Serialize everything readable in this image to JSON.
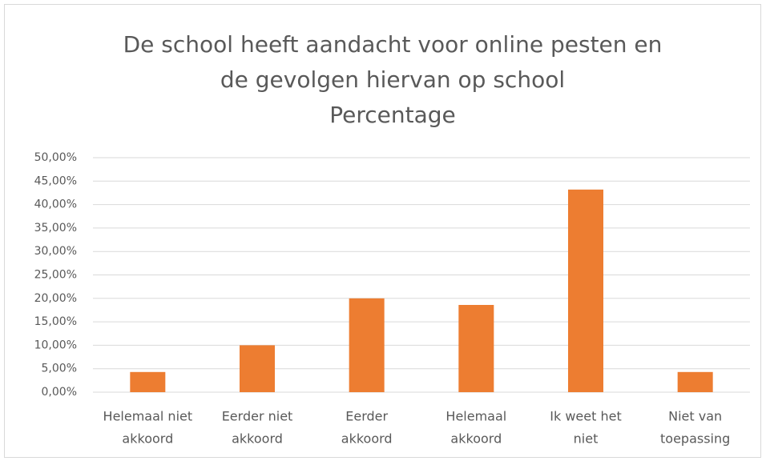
{
  "chart_data": {
    "type": "bar",
    "title": [
      "De school heeft aandacht voor online pesten en",
      "de gevolgen hiervan op school"
    ],
    "subtitle": "Percentage",
    "categories": [
      [
        "Helemaal niet",
        "akkoord"
      ],
      [
        "Eerder niet",
        "akkoord"
      ],
      [
        "Eerder",
        "akkoord"
      ],
      [
        "Helemaal",
        "akkoord"
      ],
      [
        "Ik weet het",
        "niet"
      ],
      [
        "Niet van",
        "toepassing"
      ]
    ],
    "values": [
      4.3,
      10,
      20,
      18.6,
      43.2,
      4.3
    ],
    "color": "#ed7d31",
    "ylim": [
      0,
      50
    ],
    "yticks": [
      {
        "value": 0,
        "label": "0,00%"
      },
      {
        "value": 5,
        "label": "5,00%"
      },
      {
        "value": 10,
        "label": "10,00%"
      },
      {
        "value": 15,
        "label": "15,00%"
      },
      {
        "value": 20,
        "label": "20,00%"
      },
      {
        "value": 25,
        "label": "25,00%"
      },
      {
        "value": 30,
        "label": "30,00%"
      },
      {
        "value": 35,
        "label": "35,00%"
      },
      {
        "value": 40,
        "label": "40,00%"
      },
      {
        "value": 45,
        "label": "45,00%"
      },
      {
        "value": 50,
        "label": "50,00%"
      }
    ],
    "grid": true
  }
}
